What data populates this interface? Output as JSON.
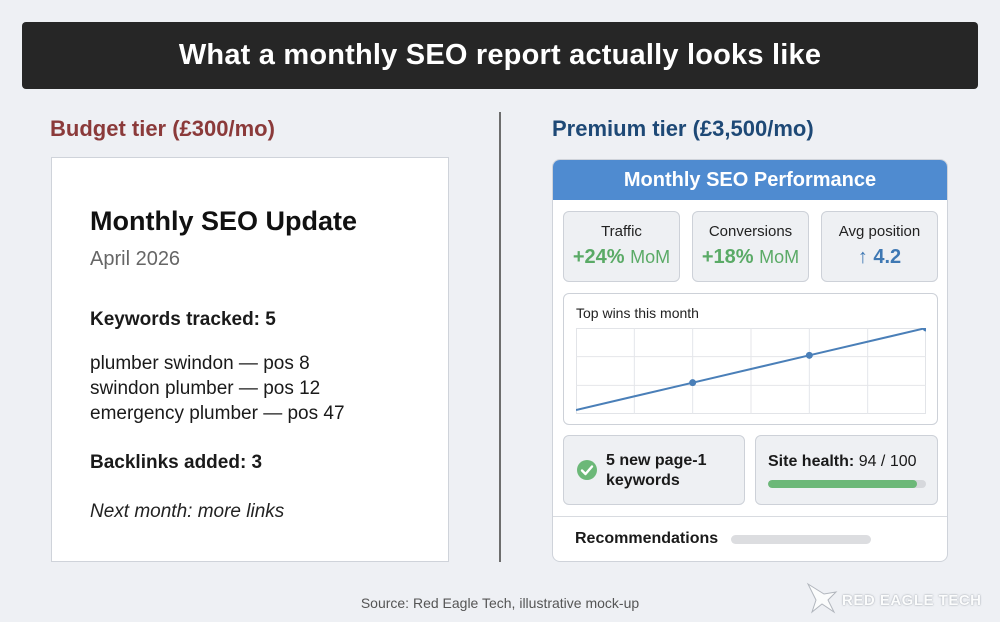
{
  "banner": {
    "title": "What a monthly SEO report actually looks like"
  },
  "budget": {
    "heading": "Budget tier (£300/mo)",
    "report_title": "Monthly SEO Update",
    "date": "April 2026",
    "keywords_heading": "Keywords tracked: 5",
    "keywords": [
      "plumber swindon — pos 8",
      "swindon plumber — pos 12",
      "emergency plumber — pos 47"
    ],
    "backlinks": "Backlinks added: 3",
    "next_month": "Next month: more links"
  },
  "premium": {
    "heading": "Premium tier (£3,500/mo)",
    "panel_title": "Monthly SEO Performance",
    "kpis": [
      {
        "label": "Traffic",
        "value": "+24%",
        "unit": "MoM",
        "color": "#5aaa66"
      },
      {
        "label": "Conversions",
        "value": "+18%",
        "unit": "MoM",
        "color": "#5aaa66"
      },
      {
        "label": "Avg position",
        "value": "↑ 4.2",
        "unit": "",
        "color": "#3e78b3"
      }
    ],
    "chart_title": "Top wins this month",
    "wins": "5 new page-1 keywords",
    "site_health": {
      "label": "Site health:",
      "value": "94 / 100",
      "score": 94,
      "max": 100,
      "color": "#6cb878"
    },
    "recommendations": "Recommendations"
  },
  "chart_data": {
    "type": "line",
    "title": "Top wins this month",
    "x": [
      0,
      1,
      2,
      3
    ],
    "series": [
      {
        "values": [
          0,
          1,
          2,
          3
        ]
      }
    ],
    "xlim": [
      0,
      3
    ],
    "ylim": [
      0,
      3
    ],
    "grid": true,
    "color": "#4a7fb8"
  },
  "source": "Source: Red Eagle Tech, illustrative mock-up",
  "watermark": {
    "text": "RED EAGLE TECH"
  }
}
